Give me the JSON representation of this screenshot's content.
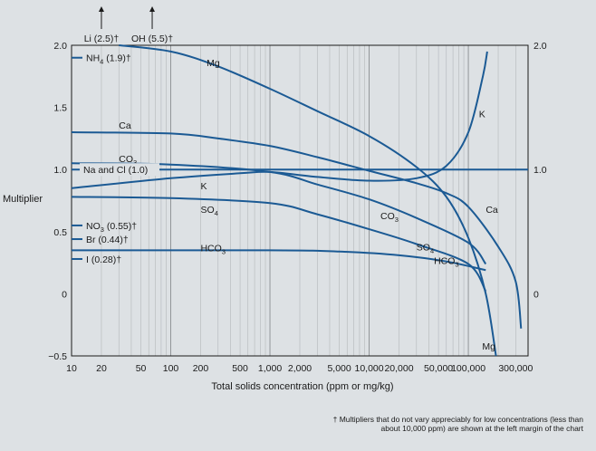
{
  "chart_data": {
    "type": "line",
    "title": "",
    "xlabel": "Total solids concentration (ppm or mg/kg)",
    "ylabel": "Multiplier",
    "x_scale": "log",
    "xlim": [
      10,
      400000
    ],
    "ylim": [
      -0.5,
      2.0
    ],
    "x_ticks": [
      {
        "value": 10,
        "label": "10"
      },
      {
        "value": 20,
        "label": "20"
      },
      {
        "value": 50,
        "label": "50"
      },
      {
        "value": 100,
        "label": "100"
      },
      {
        "value": 200,
        "label": "200"
      },
      {
        "value": 500,
        "label": "500"
      },
      {
        "value": 1000,
        "label": "1,000"
      },
      {
        "value": 2000,
        "label": "2,000"
      },
      {
        "value": 5000,
        "label": "5,000"
      },
      {
        "value": 10000,
        "label": "10,000"
      },
      {
        "value": 20000,
        "label": "20,000"
      },
      {
        "value": 50000,
        "label": "50,000"
      },
      {
        "value": 100000,
        "label": "100,000"
      },
      {
        "value": 300000,
        "label": "300,000"
      }
    ],
    "y_ticks_left": [
      {
        "value": -0.5,
        "label": "−0.5"
      },
      {
        "value": 0,
        "label": "0"
      },
      {
        "value": 0.5,
        "label": "0.5"
      },
      {
        "value": 1.0,
        "label": "1.0"
      },
      {
        "value": 1.5,
        "label": "1.5"
      },
      {
        "value": 2.0,
        "label": "2.0"
      }
    ],
    "y_ticks_right": [
      {
        "value": 0,
        "label": "0"
      },
      {
        "value": 1.0,
        "label": "1.0"
      },
      {
        "value": 2.0,
        "label": "2.0"
      }
    ],
    "grid": true,
    "line_color": "#1b5a94",
    "series": [
      {
        "name": "Mg",
        "label_x": 230,
        "label_y": 1.86,
        "points": [
          [
            30,
            2.0
          ],
          [
            100,
            1.95
          ],
          [
            300,
            1.83
          ],
          [
            1000,
            1.65
          ],
          [
            3000,
            1.47
          ],
          [
            10000,
            1.27
          ],
          [
            30000,
            1.02
          ],
          [
            60000,
            0.78
          ],
          [
            100000,
            0.45
          ],
          [
            150000,
            0.0
          ],
          [
            190000,
            -0.5
          ]
        ]
      },
      {
        "name": "Ca",
        "label_x": 30,
        "label_y": 1.36,
        "points": [
          [
            10,
            1.3
          ],
          [
            100,
            1.29
          ],
          [
            300,
            1.25
          ],
          [
            1000,
            1.19
          ],
          [
            3000,
            1.1
          ],
          [
            10000,
            0.99
          ],
          [
            30000,
            0.89
          ],
          [
            60000,
            0.81
          ],
          [
            100000,
            0.7
          ],
          [
            200000,
            0.38
          ],
          [
            300000,
            0.1
          ],
          [
            340000,
            -0.28
          ]
        ]
      },
      {
        "name": "CO3",
        "label_x": 30,
        "label_y": 1.09,
        "points": [
          [
            10,
            1.05
          ],
          [
            100,
            1.04
          ],
          [
            1000,
            0.98
          ],
          [
            3000,
            0.88
          ],
          [
            10000,
            0.76
          ],
          [
            30000,
            0.61
          ],
          [
            100000,
            0.41
          ],
          [
            150000,
            0.24
          ]
        ]
      },
      {
        "name": "K",
        "label_x": 200,
        "label_y": 0.87,
        "points": [
          [
            10,
            0.85
          ],
          [
            100,
            0.93
          ],
          [
            500,
            0.97
          ],
          [
            1000,
            0.98
          ],
          [
            3000,
            0.94
          ],
          [
            10000,
            0.91
          ],
          [
            30000,
            0.93
          ],
          [
            60000,
            1.03
          ],
          [
            100000,
            1.3
          ],
          [
            140000,
            1.75
          ],
          [
            155000,
            1.95
          ]
        ]
      },
      {
        "name": "SO4",
        "label_x": 200,
        "label_y": 0.68,
        "points": [
          [
            10,
            0.78
          ],
          [
            100,
            0.77
          ],
          [
            1000,
            0.73
          ],
          [
            3000,
            0.64
          ],
          [
            10000,
            0.52
          ],
          [
            30000,
            0.4
          ],
          [
            100000,
            0.24
          ],
          [
            150000,
            0.02
          ]
        ]
      },
      {
        "name": "HCO3",
        "label_x": 200,
        "label_y": 0.37,
        "points": [
          [
            10,
            0.35
          ],
          [
            1000,
            0.35
          ],
          [
            5000,
            0.34
          ],
          [
            20000,
            0.31
          ],
          [
            60000,
            0.26
          ],
          [
            150000,
            0.19
          ]
        ]
      },
      {
        "name": "Na and Cl (1.0)",
        "label_x": 11,
        "label_y": 1.0,
        "points": [
          [
            10,
            1.0
          ],
          [
            400000,
            1.0
          ]
        ]
      }
    ],
    "margin_markers": [
      {
        "label": "NH₄ (1.9)†",
        "value": 1.9
      },
      {
        "label": "NO₃ (0.55)†",
        "value": 0.55
      },
      {
        "label": "Br (0.44)†",
        "value": 0.44
      },
      {
        "label": "I (0.28)†",
        "value": 0.28
      }
    ],
    "top_arrows": [
      {
        "label": "Li (2.5)†",
        "x": 20
      },
      {
        "label": "OH (5.5)†",
        "x": 65
      }
    ],
    "footnote": "† Multipliers that do not vary appreciably for low concentrations (less than about 10,000 ppm) are shown at the left margin of the chart"
  }
}
